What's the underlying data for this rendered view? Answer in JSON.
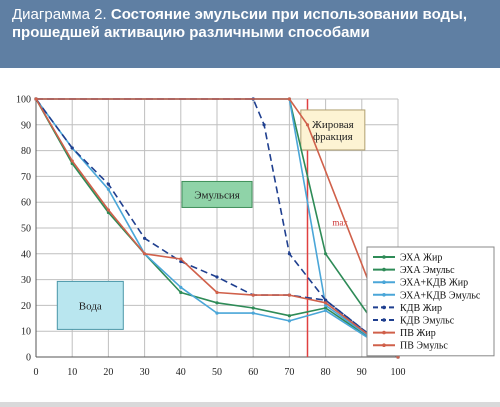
{
  "header": {
    "title_lead": "Диаграмма 2.",
    "title_rest": "Состояние эмульсии при использовании воды, прошедшей активацию различными способами"
  },
  "chart_data": {
    "type": "line",
    "title": "",
    "xlabel": "",
    "ylabel": "",
    "xlim": [
      0,
      100
    ],
    "ylim": [
      0,
      100
    ],
    "x_ticks": [
      0,
      10,
      20,
      30,
      40,
      50,
      60,
      70,
      80,
      90,
      100
    ],
    "y_ticks": [
      0,
      10,
      20,
      30,
      40,
      50,
      60,
      70,
      80,
      90,
      100
    ],
    "grid": true,
    "legend_position": "right",
    "annotations": [
      {
        "text": "Жировая фракция",
        "fill": "#fdf3d3",
        "stroke": "#b0a070",
        "x": 82,
        "y": 88
      },
      {
        "text": "Эмульсия",
        "fill": "#8fd3a8",
        "stroke": "#3f8f5a",
        "x": 50,
        "y": 63
      },
      {
        "text": "Вода",
        "fill": "#b9e6ef",
        "stroke": "#4a97a8",
        "x": 15,
        "y": 20
      },
      {
        "text": "max",
        "color": "#cc3333",
        "x": 84,
        "y": 51
      }
    ],
    "marker_line": {
      "x": 75,
      "color": "#e04040"
    },
    "series": [
      {
        "name": "ЭХА Жир",
        "color": "#2e8b57",
        "dash": "",
        "x": [
          0,
          70,
          80,
          100
        ],
        "y": [
          100,
          100,
          40,
          0
        ]
      },
      {
        "name": "ЭХА Эмульс",
        "color": "#2e8b57",
        "dash": "",
        "x": [
          0,
          10,
          20,
          30,
          40,
          50,
          60,
          70,
          80,
          100
        ],
        "y": [
          100,
          75,
          56,
          40,
          25,
          21,
          19,
          16,
          19,
          0
        ]
      },
      {
        "name": "ЭХА+КДВ Жир",
        "color": "#4aa6d8",
        "dash": "",
        "x": [
          0,
          60,
          70,
          80,
          100
        ],
        "y": [
          100,
          100,
          100,
          20,
          0
        ]
      },
      {
        "name": "ЭХА+КДВ Эмульс",
        "color": "#4aa6d8",
        "dash": "",
        "x": [
          0,
          10,
          20,
          30,
          40,
          50,
          60,
          70,
          80,
          100
        ],
        "y": [
          100,
          81,
          65,
          40,
          27,
          17,
          17,
          14,
          18,
          0
        ]
      },
      {
        "name": "КДВ Жир",
        "color": "#1f3f8f",
        "dash": "7,4",
        "x": [
          0,
          60,
          63,
          70,
          80,
          100
        ],
        "y": [
          100,
          100,
          90,
          40,
          22,
          0
        ]
      },
      {
        "name": "КДВ Эмульс",
        "color": "#1f3f8f",
        "dash": "7,4",
        "x": [
          0,
          10,
          20,
          30,
          40,
          50,
          60,
          70,
          80,
          100
        ],
        "y": [
          100,
          81,
          67,
          46,
          37,
          31,
          24,
          24,
          22,
          0
        ]
      },
      {
        "name": "ПВ Жир",
        "color": "#d0604a",
        "dash": "",
        "x": [
          0,
          70,
          75,
          100
        ],
        "y": [
          100,
          100,
          90,
          0
        ]
      },
      {
        "name": "ПВ Эмульс",
        "color": "#d0604a",
        "dash": "",
        "x": [
          0,
          10,
          20,
          30,
          40,
          50,
          60,
          70,
          80,
          100
        ],
        "y": [
          100,
          76,
          57,
          40,
          38,
          25,
          24,
          24,
          21,
          0
        ]
      }
    ]
  }
}
